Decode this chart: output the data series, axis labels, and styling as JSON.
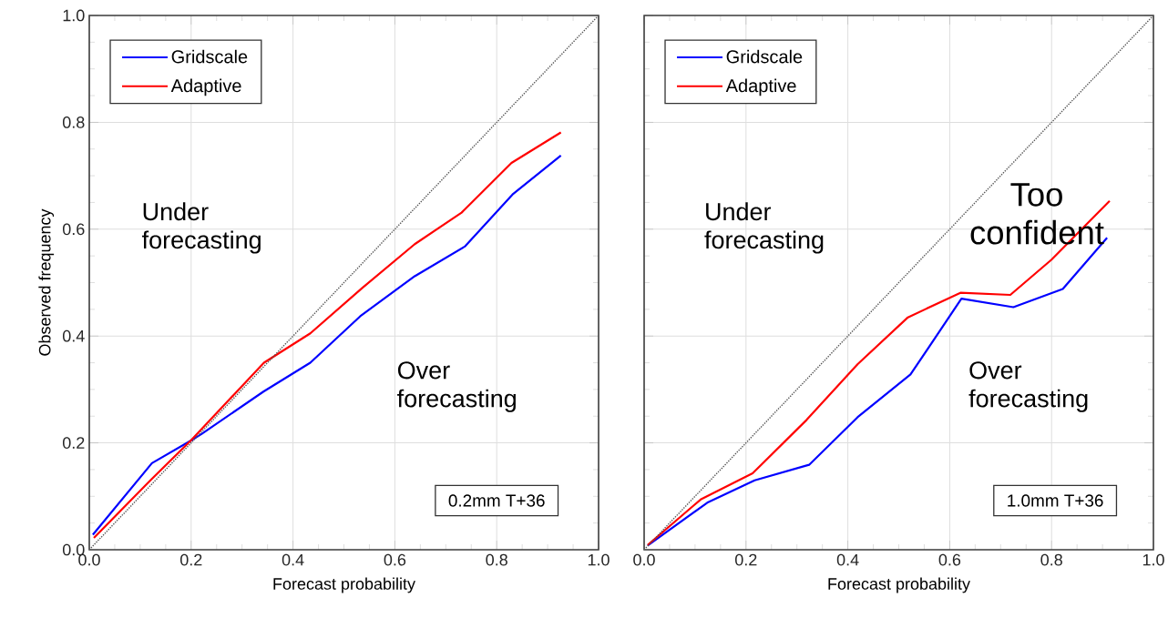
{
  "chart_data": [
    {
      "type": "line",
      "xlabel": "Forecast probability",
      "ylabel": "Observed frequency",
      "xlim": [
        0,
        1
      ],
      "ylim": [
        0,
        1
      ],
      "xticks": [
        {
          "value": 0,
          "label": "0.0"
        },
        {
          "value": 0.2,
          "label": "0.2"
        },
        {
          "value": 0.4,
          "label": "0.4"
        },
        {
          "value": 0.6,
          "label": "0.6"
        },
        {
          "value": 0.8,
          "label": "0.8"
        },
        {
          "value": 1,
          "label": "1.0"
        }
      ],
      "yticks": [
        {
          "value": 0,
          "label": "0.0"
        },
        {
          "value": 0.2,
          "label": "0.2"
        },
        {
          "value": 0.4,
          "label": "0.4"
        },
        {
          "value": 0.6,
          "label": "0.6"
        },
        {
          "value": 0.8,
          "label": "0.8"
        },
        {
          "value": 1,
          "label": "1.0"
        }
      ],
      "grid": true,
      "legend": "top left",
      "series": [
        {
          "name": "Gridscale",
          "color": "#0000ff",
          "x": [
            0.007,
            0.123,
            0.199,
            0.221,
            0.342,
            0.434,
            0.532,
            0.639,
            0.738,
            0.831,
            0.926
          ],
          "values": [
            0.028,
            0.162,
            0.204,
            0.217,
            0.296,
            0.35,
            0.437,
            0.512,
            0.568,
            0.665,
            0.738
          ]
        },
        {
          "name": "Adaptive",
          "color": "#ff0000",
          "x": [
            0.009,
            0.12,
            0.199,
            0.343,
            0.434,
            0.536,
            0.639,
            0.731,
            0.829,
            0.926
          ],
          "values": [
            0.022,
            0.13,
            0.204,
            0.35,
            0.405,
            0.49,
            0.572,
            0.631,
            0.724,
            0.781
          ]
        },
        {
          "type": "line",
          "color": "#555555",
          "line_style": "dotted",
          "x": [
            0,
            1
          ],
          "values": [
            0,
            1
          ]
        }
      ],
      "annotations": [
        "Under forecasting",
        "Over forecasting",
        "0.2mm T+36"
      ]
    },
    {
      "type": "line",
      "xlabel": "Forecast probability",
      "xlim": [
        0,
        1
      ],
      "ylim": [
        0,
        1
      ],
      "tick_labels": "x",
      "xticks": [
        {
          "value": 0,
          "label": "0.0"
        },
        {
          "value": 0.2,
          "label": "0.2"
        },
        {
          "value": 0.4,
          "label": "0.4"
        },
        {
          "value": 0.6,
          "label": "0.6"
        },
        {
          "value": 0.8,
          "label": "0.8"
        },
        {
          "value": 1,
          "label": "1.0"
        }
      ],
      "yticks": [
        {
          "value": 0,
          "label": null
        },
        {
          "value": 0.2,
          "label": null
        },
        {
          "value": 0.4,
          "label": null
        },
        {
          "value": 0.6,
          "label": null
        },
        {
          "value": 0.8,
          "label": null
        },
        {
          "value": 1,
          "label": null
        }
      ],
      "grid": true,
      "legend": "top left",
      "series": [
        {
          "name": "Gridscale",
          "color": "#0000ff",
          "x": [
            0.007,
            0.124,
            0.217,
            0.324,
            0.419,
            0.523,
            0.623,
            0.725,
            0.822,
            0.909
          ],
          "values": [
            0.008,
            0.088,
            0.13,
            0.159,
            0.248,
            0.328,
            0.47,
            0.454,
            0.488,
            0.584
          ]
        },
        {
          "name": "Adaptive",
          "color": "#ff0000",
          "x": [
            0.007,
            0.111,
            0.213,
            0.319,
            0.419,
            0.518,
            0.621,
            0.719,
            0.8,
            0.914
          ],
          "values": [
            0.009,
            0.094,
            0.143,
            0.243,
            0.347,
            0.435,
            0.481,
            0.477,
            0.543,
            0.653
          ]
        },
        {
          "type": "line",
          "color": "#555555",
          "line_style": "dotted",
          "x": [
            0,
            1
          ],
          "values": [
            0,
            1
          ]
        }
      ],
      "annotations": [
        "Under forecasting",
        "Too confident",
        "Over forecasting",
        "1.0mm T+36"
      ]
    }
  ]
}
